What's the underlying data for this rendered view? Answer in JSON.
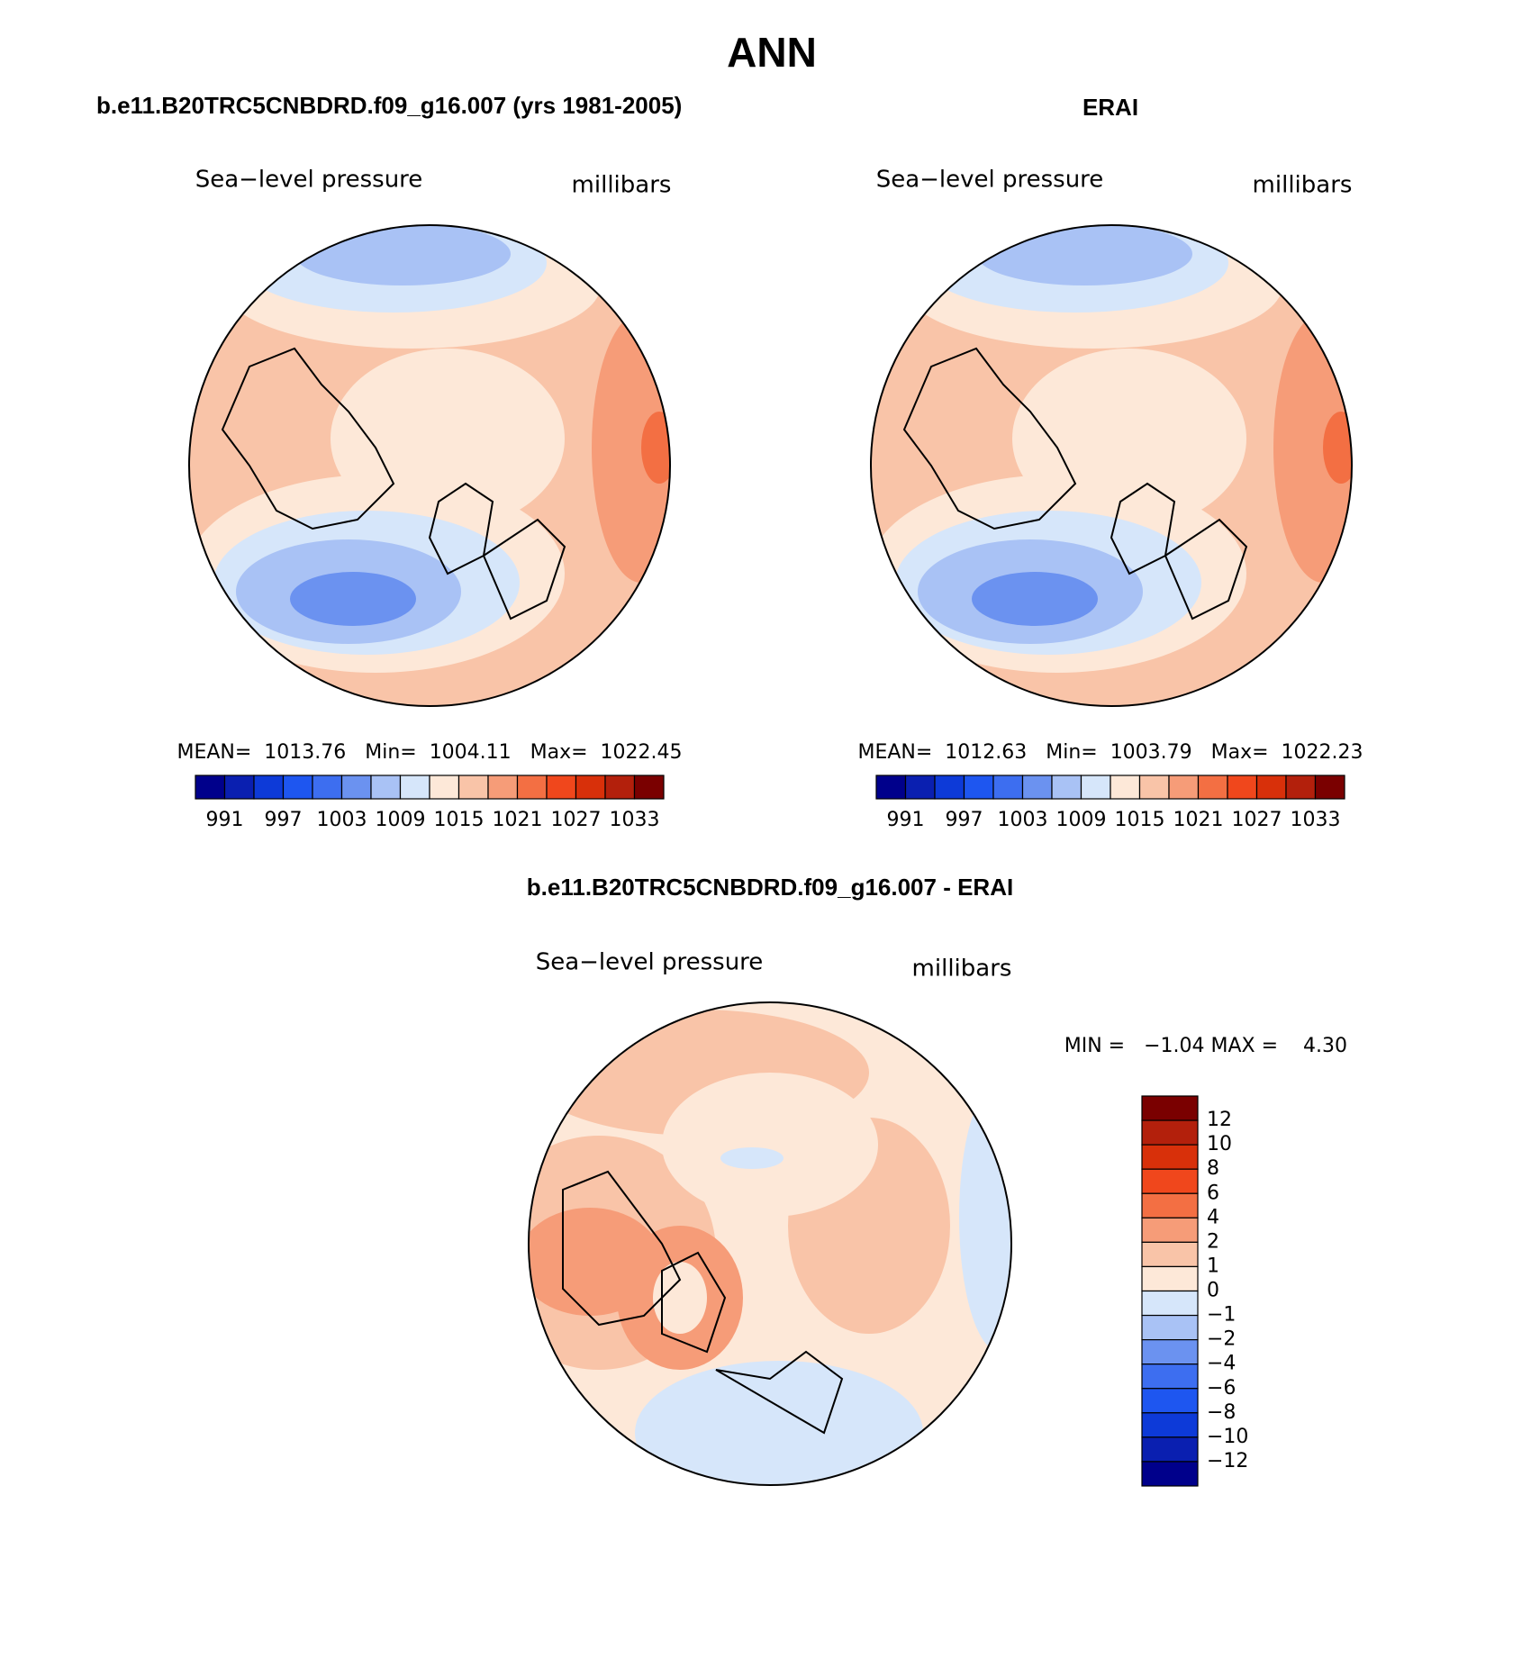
{
  "title": "ANN",
  "panels": [
    {
      "title": "b.e11.B20TRC5CNBDRD.f09_g16.007 (yrs 1981-2005)",
      "left_label": "Sea−level pressure",
      "right_label": "millibars",
      "stats": "MEAN=  1013.76   Min=  1004.11   Max=  1022.45"
    },
    {
      "title": "ERAI",
      "left_label": "Sea−level pressure",
      "right_label": "millibars",
      "stats": "MEAN=  1012.63   Min=  1003.79   Max=  1022.23"
    },
    {
      "title": "b.e11.B20TRC5CNBDRD.f09_g16.007 - ERAI",
      "left_label": "Sea−level pressure",
      "right_label": "millibars",
      "stats": "MIN =   −1.04 MAX =    4.30"
    }
  ],
  "abs_colorbar": {
    "colors": [
      "#00008b",
      "#0a1fb0",
      "#0d3ad8",
      "#1e56f0",
      "#3d6ef0",
      "#6b92f0",
      "#a9c2f5",
      "#d6e6fa",
      "#fde8d8",
      "#f9c4a8",
      "#f69c78",
      "#f36f43",
      "#f0471c",
      "#d8300a",
      "#b3200c",
      "#7a0000"
    ],
    "labels": [
      "991",
      "997",
      "1003",
      "1009",
      "1015",
      "1021",
      "1027",
      "1033"
    ]
  },
  "diff_colorbar": {
    "colors": [
      "#7a0000",
      "#b3200c",
      "#d8300a",
      "#f0471c",
      "#f36f43",
      "#f69c78",
      "#f9c4a8",
      "#fde8d8",
      "#d6e6fa",
      "#a9c2f5",
      "#6b92f0",
      "#3d6ef0",
      "#1e56f0",
      "#0d3ad8",
      "#0a1fb0",
      "#00008b"
    ],
    "labels": [
      "12",
      "10",
      "8",
      "6",
      "4",
      "2",
      "1",
      "0",
      "−1",
      "−2",
      "−4",
      "−6",
      "−8",
      "−10",
      "−12"
    ]
  }
}
